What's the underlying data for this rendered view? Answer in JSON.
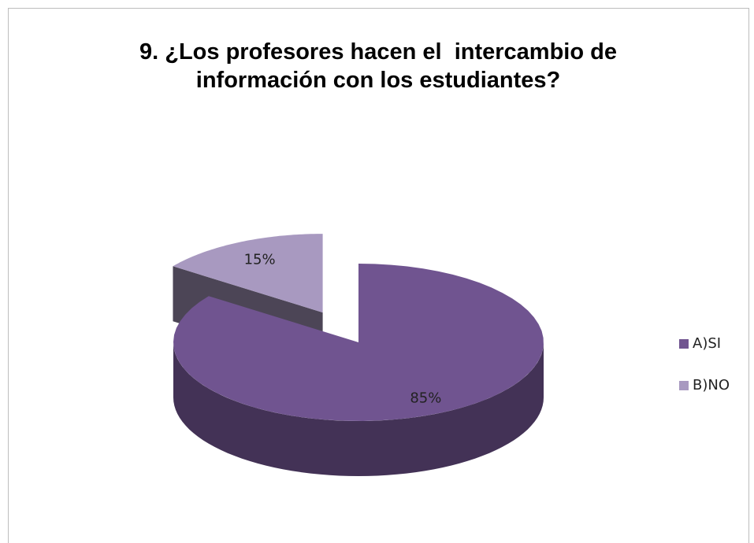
{
  "chart_data": {
    "type": "pie",
    "title": "9. ¿Los profesores hacen el  intercambio de información con los estudiantes?",
    "categories": [
      "A)SI",
      "B)NO"
    ],
    "values": [
      85,
      15
    ],
    "value_labels": [
      "85%",
      "15%"
    ],
    "colors": [
      "#705490",
      "#a899c0"
    ],
    "legend": "right"
  }
}
